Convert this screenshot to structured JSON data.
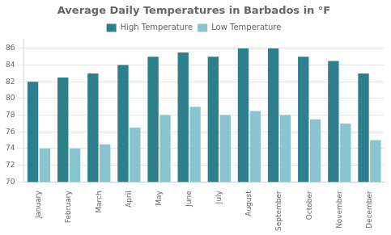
{
  "chart_data": {
    "type": "bar",
    "title": "Average Daily Temperatures in Barbados in °F",
    "categories": [
      "January",
      "February",
      "March",
      "April",
      "May",
      "June",
      "July",
      "August",
      "September",
      "October",
      "November",
      "December"
    ],
    "series": [
      {
        "name": "High Temperature",
        "color": "#2E7F8E",
        "values": [
          82,
          82.5,
          83,
          84,
          85,
          85.5,
          85,
          86,
          86,
          85,
          84.5,
          83
        ]
      },
      {
        "name": "Low Temperature",
        "color": "#88C5D0",
        "values": [
          74,
          74,
          74.5,
          76.5,
          78,
          79,
          78,
          78.5,
          78,
          77.5,
          77,
          75
        ]
      }
    ],
    "ylim": [
      70,
      87
    ],
    "yticks": [
      70,
      72,
      74,
      76,
      78,
      80,
      82,
      84,
      86
    ],
    "grid": true,
    "legend": "top"
  }
}
